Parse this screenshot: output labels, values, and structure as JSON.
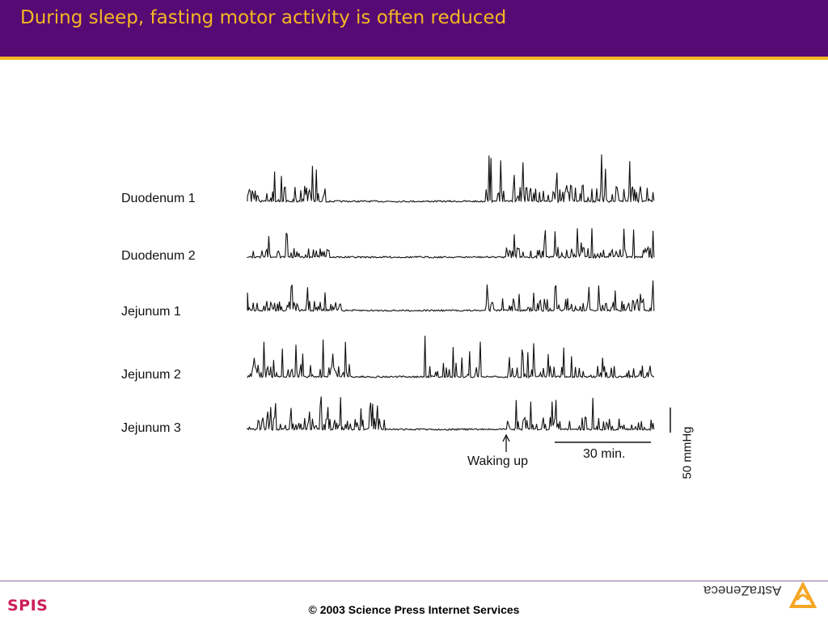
{
  "slide": {
    "title": "During sleep, fasting motor activity is often reduced"
  },
  "figure": {
    "trace_labels": [
      "Duodenum 1",
      "Duodenum 2",
      "Jejunum 1",
      "Jejunum 2",
      "Jejunum 3"
    ],
    "event_label": "Waking up",
    "time_scale_label": "30 min.",
    "pressure_scale_label": "50 mmHg"
  },
  "footer": {
    "copyright": "© 2003 Science Press Internet Services",
    "left_logo_text": "SPIS",
    "right_logo_text": "AstraZeneca"
  },
  "colors": {
    "header_bg": "#560a73",
    "header_title": "#f5b722",
    "accent_rule": "#f5b722",
    "spis_logo": "#cc1f5a",
    "az_logo": "#f5a623"
  }
}
